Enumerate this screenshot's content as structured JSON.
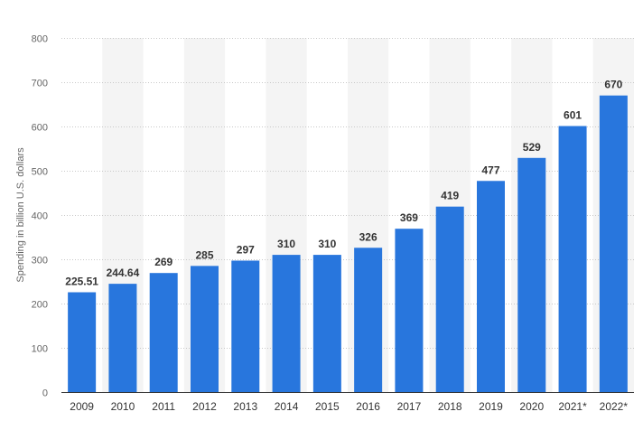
{
  "chart_data": {
    "type": "bar",
    "categories": [
      "2009",
      "2010",
      "2011",
      "2012",
      "2013",
      "2014",
      "2015",
      "2016",
      "2017",
      "2018",
      "2019",
      "2020",
      "2021*",
      "2022*"
    ],
    "values": [
      225.51,
      244.64,
      269,
      285,
      297,
      310,
      310,
      326,
      369,
      419,
      477,
      529,
      601,
      670
    ],
    "value_labels": [
      "225.51",
      "244.64",
      "269",
      "285",
      "297",
      "310",
      "310",
      "326",
      "369",
      "419",
      "477",
      "529",
      "601",
      "670"
    ],
    "title": "",
    "xlabel": "",
    "ylabel": "Spending in billion U.S. dollars",
    "ylim": [
      0,
      800
    ],
    "yticks": [
      0,
      100,
      200,
      300,
      400,
      500,
      600,
      700,
      800
    ],
    "grid": true,
    "legend": "none",
    "colors": {
      "bar": "#2876dd",
      "band": "#f4f4f4",
      "grid": "#c8c8c8",
      "axis": "#333333"
    }
  }
}
